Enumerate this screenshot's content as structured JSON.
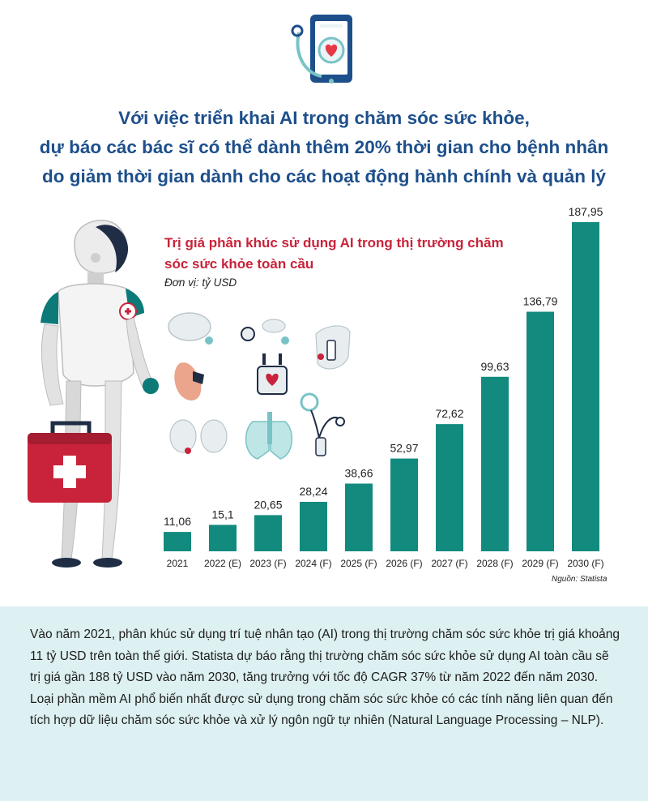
{
  "headline": {
    "line1": "Với việc triển khai AI trong chăm sóc sức khỏe,",
    "line2": "dự báo các bác sĩ có thể dành thêm 20%  thời gian cho bệnh nhân",
    "line3": "do giảm thời gian dành cho các hoạt động hành chính và quản lý"
  },
  "chart_data": {
    "type": "bar",
    "title": "Trị giá phân khúc sử dụng AI trong thị trường chăm sóc sức khỏe toàn cầu",
    "unit": "Đơn vị: tỷ USD",
    "categories": [
      "2021",
      "2022 (E)",
      "2023 (F)",
      "2024 (F)",
      "2025 (F)",
      "2026 (F)",
      "2027 (F)",
      "2028 (F)",
      "2029 (F)",
      "2030 (F)"
    ],
    "values": [
      11.06,
      15.1,
      20.65,
      28.24,
      38.66,
      52.97,
      72.62,
      99.63,
      136.79,
      187.95
    ],
    "value_labels": [
      "11,06",
      "15,1",
      "20,65",
      "28,24",
      "38,66",
      "52,97",
      "72,62",
      "99,63",
      "136,79",
      "187,95"
    ],
    "bar_color": "#128a7d",
    "ylim": [
      0,
      187.95
    ],
    "source": "Nguồn: Statista"
  },
  "colors": {
    "headline": "#1d4f8b",
    "chart_title": "#c8233a",
    "footer_background": "#ddf0f2"
  },
  "footer": {
    "text": "Vào năm 2021, phân khúc sử dụng trí tuệ nhân tạo (AI) trong thị trường chăm sóc sức khỏe trị giá khoảng 11 tỷ USD trên toàn thế giới. Statista dự báo rằng thị trường chăm sóc sức khỏe sử dụng AI toàn cầu sẽ trị giá gần 188 tỷ USD vào năm 2030, tăng trưởng với tốc độ CAGR 37% từ năm 2022 đến năm 2030. Loại phần mềm AI phổ biến nhất được sử dụng trong chăm sóc sức khỏe có các tính năng liên quan đến tích hợp dữ liệu chăm sóc sức khỏe và xử lý ngôn ngữ tự nhiên (Natural Language Processing – NLP)."
  },
  "icons": [
    "tablet-stethoscope-icon",
    "robot-doctor-illustration",
    "medical-kit-icon",
    "health-device-icons"
  ]
}
